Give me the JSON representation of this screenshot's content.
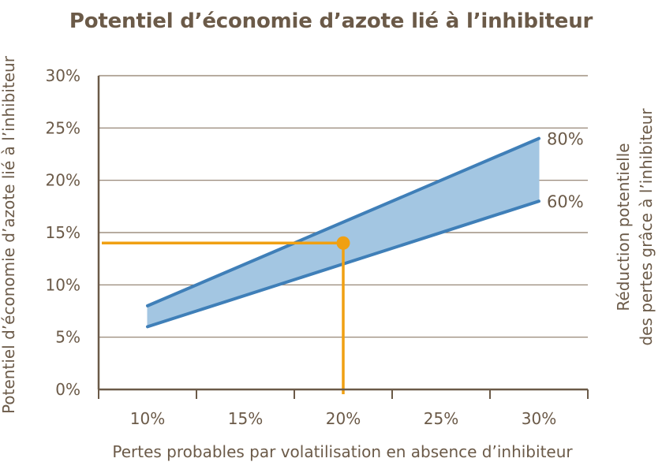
{
  "chart_data": {
    "type": "area",
    "title": "Potentiel d’économie d’azote lié à l’inhibiteur",
    "xlabel": "Pertes probables par volatilisation en absence d’inhibiteur",
    "ylabel": "Potentiel d’économie d’azote lié à l’inhibiteur",
    "y2label_line1": "Réduction potentielle",
    "y2label_line2": "des pertes grâce à l’inhibiteur",
    "x_ticks": [
      "10%",
      "15%",
      "20%",
      "25%",
      "30%"
    ],
    "y_ticks": [
      "0%",
      "5%",
      "10%",
      "15%",
      "20%",
      "25%",
      "30%"
    ],
    "xlim": [
      0.075,
      0.325
    ],
    "ylim": [
      0,
      30
    ],
    "grid": "horizontal",
    "series": [
      {
        "name": "80%",
        "x": [
          0.1,
          0.3
        ],
        "y": [
          8,
          24
        ],
        "color": "#3f7fb8"
      },
      {
        "name": "60%",
        "x": [
          0.1,
          0.3
        ],
        "y": [
          6,
          18
        ],
        "color": "#3f7fb8"
      }
    ],
    "band_fill": "#a3c6e2",
    "highlight": {
      "x": 0.2,
      "y": 14,
      "color": "#f0a012"
    },
    "axis_color": "#6b5a48",
    "grid_color": "#8c7a68"
  }
}
